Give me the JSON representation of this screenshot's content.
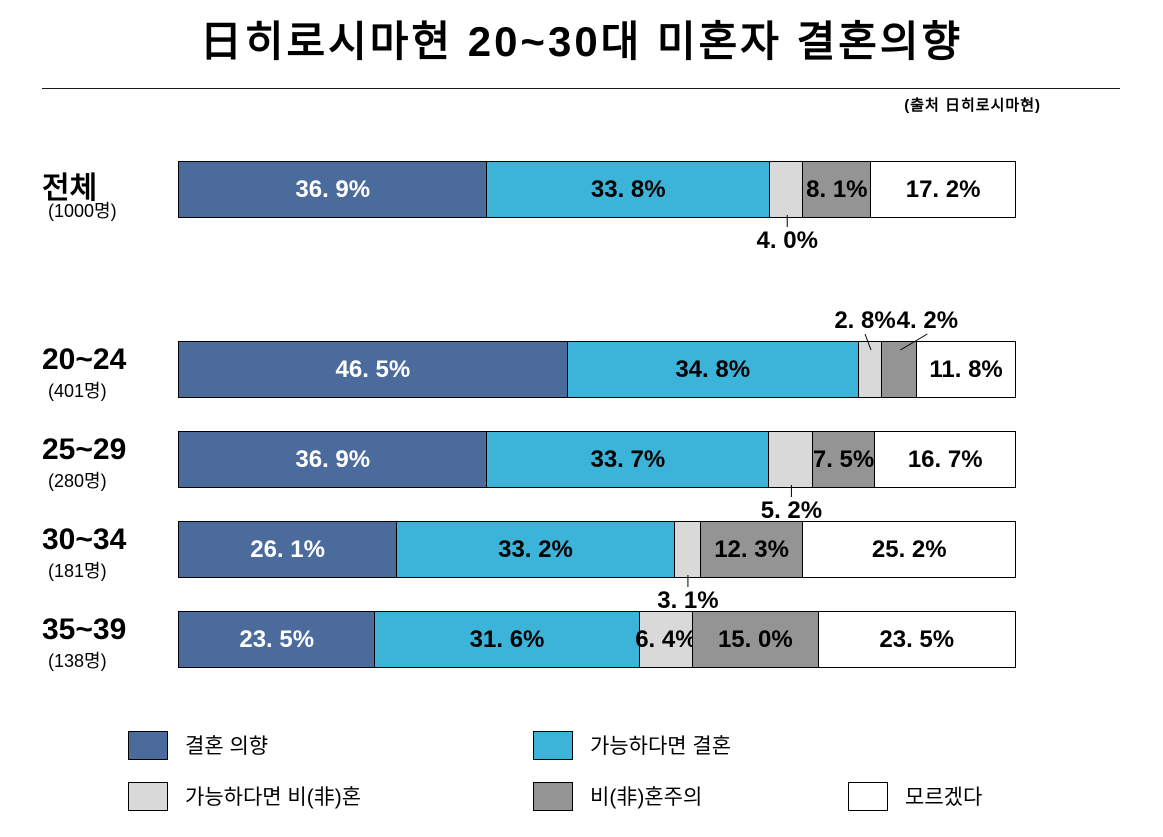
{
  "title": "日히로시마현 20~30대 미혼자 결혼의향",
  "source": "(출처 日히로시마현)",
  "colors": {
    "marry_intent": "#4a6b9c",
    "marry_if_possible": "#3cb4d9",
    "single_if_possible": "#d9d9d9",
    "single_principle": "#949494",
    "dont_know": "#ffffff",
    "border": "#000000"
  },
  "chart_data": {
    "type": "bar",
    "orientation": "horizontal",
    "stacked": true,
    "grid": false,
    "legend_position": "bottom",
    "title": "日히로시마현 20~30대 미혼자 결혼의향",
    "xlabel": "",
    "ylabel": "",
    "xlim": [
      0,
      100
    ],
    "unit": "%",
    "categories": [
      "전체",
      "20~24",
      "25~29",
      "30~34",
      "35~39"
    ],
    "category_counts": [
      "(1000명)",
      "(401명)",
      "(280명)",
      "(181명)",
      "(138명)"
    ],
    "series": [
      {
        "name": "결혼 의향",
        "color": "#4a6b9c",
        "text_color": "#ffffff",
        "values": [
          36.9,
          46.5,
          36.9,
          26.1,
          23.5
        ]
      },
      {
        "name": "가능하다면 결혼",
        "color": "#3cb4d9",
        "text_color": "#000000",
        "values": [
          33.8,
          34.8,
          33.7,
          33.2,
          31.6
        ]
      },
      {
        "name": "가능하다면 비(非)혼",
        "color": "#d9d9d9",
        "text_color": "#000000",
        "values": [
          4.0,
          2.8,
          5.2,
          3.1,
          6.4
        ]
      },
      {
        "name": "비(非)혼주의",
        "color": "#949494",
        "text_color": "#000000",
        "values": [
          8.1,
          4.2,
          7.5,
          12.3,
          15.0
        ]
      },
      {
        "name": "모르겠다",
        "color": "#ffffff",
        "text_color": "#000000",
        "values": [
          17.2,
          11.8,
          16.7,
          25.2,
          23.5
        ]
      }
    ],
    "outside_labels": [
      {
        "row": 0,
        "series": 2,
        "side": "below",
        "dx": 0
      },
      {
        "row": 1,
        "series": 2,
        "side": "above",
        "dx": -6
      },
      {
        "row": 1,
        "series": 3,
        "side": "above",
        "dx": 27
      },
      {
        "row": 2,
        "series": 2,
        "side": "below",
        "dx": 0
      },
      {
        "row": 3,
        "series": 2,
        "side": "below",
        "dx": 0
      }
    ]
  }
}
